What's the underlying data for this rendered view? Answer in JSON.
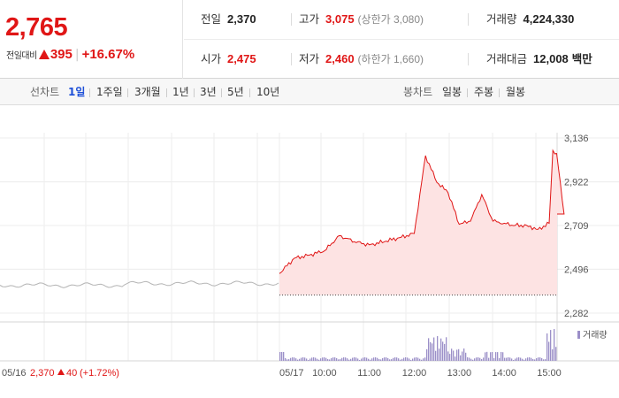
{
  "quote": {
    "price": "2,765",
    "change_label": "전일대비",
    "change_value": "395",
    "change_pct": "+16.67%",
    "rows": [
      {
        "key": "전일",
        "value": "2,370",
        "color": "normal"
      },
      {
        "key": "고가",
        "value": "3,075",
        "sub": "(상한가 3,080)",
        "color": "red"
      },
      {
        "key": "거래량",
        "value": "4,224,330",
        "color": "normal"
      },
      {
        "key": "시가",
        "value": "2,475",
        "color": "red"
      },
      {
        "key": "저가",
        "value": "2,460",
        "sub": "(하한가 1,660)",
        "color": "red"
      },
      {
        "key": "거래대금",
        "value": "12,008",
        "unit": "백만",
        "color": "normal"
      }
    ]
  },
  "toolbar": {
    "line_label": "선차트",
    "line_periods": [
      "1일",
      "1주일",
      "3개월",
      "1년",
      "3년",
      "5년",
      "10년"
    ],
    "line_active": "1일",
    "candle_label": "봉차트",
    "candle_periods": [
      "일봉",
      "주봉",
      "월봉"
    ]
  },
  "chart_data": {
    "type": "line",
    "y_ticks": [
      "3,136",
      "2,922",
      "2,709",
      "2,496",
      "2,282"
    ],
    "ylim": [
      2282,
      3136
    ],
    "prev_day": {
      "date": "05/16",
      "close_text": "2,370",
      "change_text": "40",
      "pct_text": "(+1.72%)",
      "level": 2418
    },
    "today": {
      "date": "05/17",
      "x_ticks": [
        "10:00",
        "11:00",
        "12:00",
        "13:00",
        "14:00",
        "15:00"
      ],
      "prev_close": 2370,
      "series": [
        {
          "time": "09:00",
          "price": 2475
        },
        {
          "time": "09:20",
          "price": 2550
        },
        {
          "time": "09:40",
          "price": 2565
        },
        {
          "time": "10:00",
          "price": 2585
        },
        {
          "time": "10:20",
          "price": 2660
        },
        {
          "time": "10:40",
          "price": 2630
        },
        {
          "time": "11:00",
          "price": 2615
        },
        {
          "time": "11:20",
          "price": 2630
        },
        {
          "time": "11:40",
          "price": 2650
        },
        {
          "time": "12:00",
          "price": 2670
        },
        {
          "time": "12:15",
          "price": 3050
        },
        {
          "time": "12:30",
          "price": 2920
        },
        {
          "time": "12:45",
          "price": 2870
        },
        {
          "time": "13:00",
          "price": 2715
        },
        {
          "time": "13:15",
          "price": 2730
        },
        {
          "time": "13:30",
          "price": 2860
        },
        {
          "time": "13:45",
          "price": 2730
        },
        {
          "time": "14:00",
          "price": 2720
        },
        {
          "time": "14:15",
          "price": 2710
        },
        {
          "time": "14:30",
          "price": 2710
        },
        {
          "time": "14:45",
          "price": 2690
        },
        {
          "time": "15:00",
          "price": 2720
        },
        {
          "time": "15:05",
          "price": 3075
        },
        {
          "time": "15:10",
          "price": 3060
        },
        {
          "time": "15:20",
          "price": 2765
        }
      ]
    },
    "volume_label": "거래량",
    "volume_color": "#9b8fc8",
    "line_color": "#e01616",
    "fill_color": "#fde3e3"
  }
}
